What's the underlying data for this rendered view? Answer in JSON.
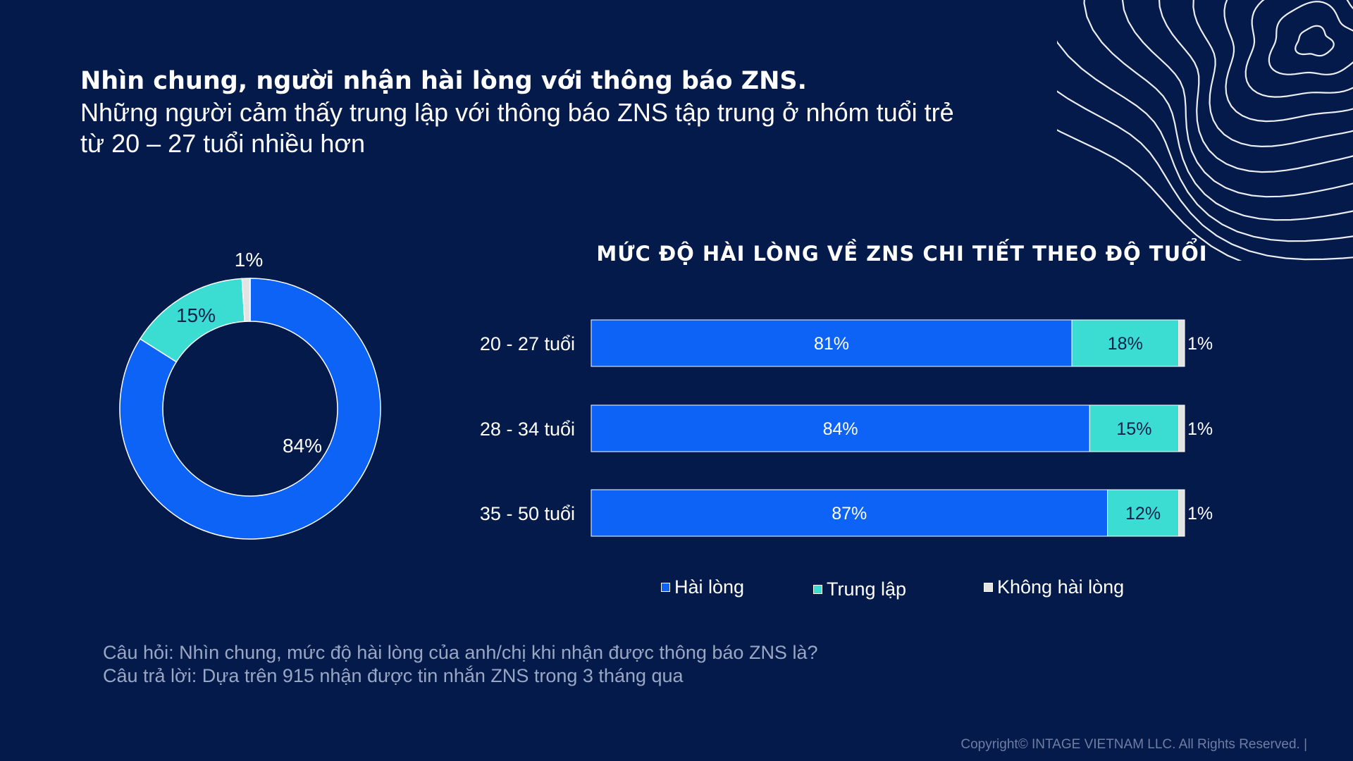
{
  "headline": {
    "title": "Nhìn chung, người nhận hài lòng với thông báo ZNS.",
    "subtitle_line1": "Những người cảm thấy trung lập với thông báo ZNS tập trung ở nhóm tuổi trẻ",
    "subtitle_line2": "từ 20 – 27 tuổi nhiều hơn"
  },
  "colors": {
    "background": "#031a4a",
    "hai_long": "#0d63f5",
    "trung_lap": "#3bdcd2",
    "khong_hai_long": "#e3e3e3"
  },
  "chart_data": [
    {
      "type": "pie",
      "title": "",
      "slices": [
        {
          "name": "Hài lòng",
          "value": 84,
          "label": "84%"
        },
        {
          "name": "Trung lập",
          "value": 15,
          "label": "15%"
        },
        {
          "name": "Không hài lòng",
          "value": 1,
          "label": "1%"
        }
      ]
    },
    {
      "type": "bar",
      "orientation": "horizontal",
      "stacked": true,
      "title": "MỨC ĐỘ HÀI LÒNG VỀ ZNS CHI TIẾT THEO ĐỘ TUỔI",
      "categories": [
        "20 - 27 tuổi",
        "28 - 34 tuổi",
        "35 - 50 tuổi"
      ],
      "series": [
        {
          "name": "Hài lòng",
          "values": [
            81,
            84,
            87
          ],
          "labels": [
            "81%",
            "84%",
            "87%"
          ]
        },
        {
          "name": "Trung lập",
          "values": [
            18,
            15,
            12
          ],
          "labels": [
            "18%",
            "15%",
            "12%"
          ]
        },
        {
          "name": "Không hài lòng",
          "values": [
            1,
            1,
            1
          ],
          "labels": [
            "1%",
            "1%",
            "1%"
          ]
        }
      ],
      "xlim": [
        0,
        100
      ],
      "legend": "bottom",
      "grid": false
    }
  ],
  "legend": [
    {
      "label": "Hài lòng"
    },
    {
      "label": "Trung lập"
    },
    {
      "label": "Không hài lòng"
    }
  ],
  "notes": {
    "question": "Câu hỏi: Nhìn chung, mức độ hài lòng của anh/chị khi nhận được thông báo ZNS là?",
    "answer": "Câu trả lời: Dựa trên 915 nhận được tin nhắn ZNS trong 3 tháng qua"
  },
  "copyright": "Copyright© INTAGE VIETNAM LLC. All Rights Reserved. |"
}
